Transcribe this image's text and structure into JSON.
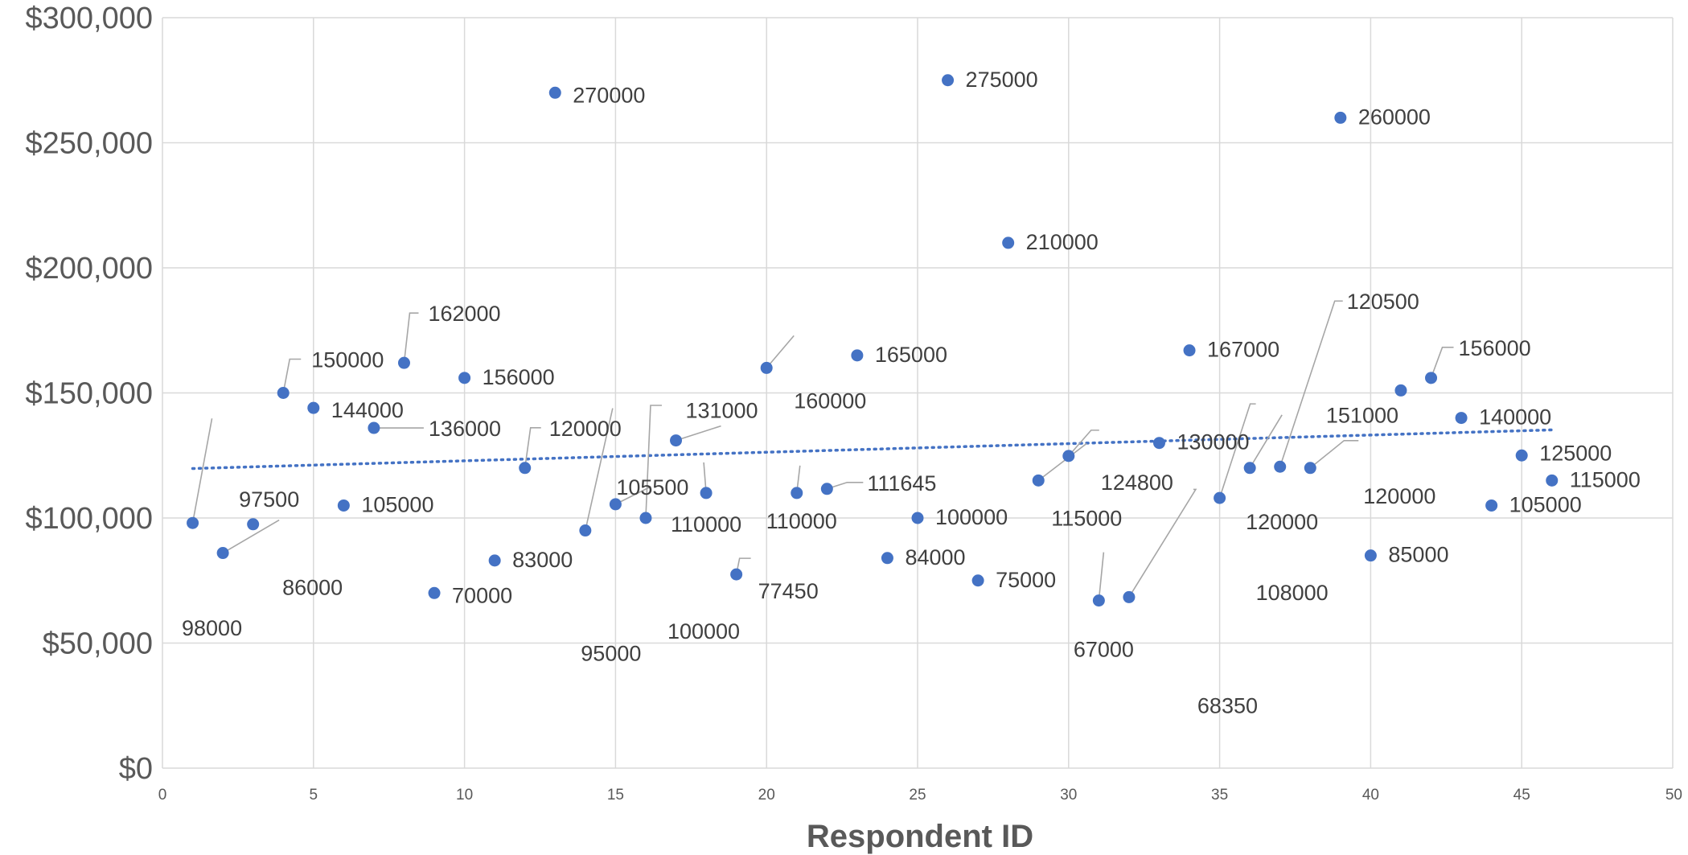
{
  "chart_data": {
    "type": "scatter",
    "title": "",
    "xlabel": "Respondent ID",
    "ylabel": "",
    "xlim": [
      0,
      50
    ],
    "ylim": [
      0,
      300000
    ],
    "x_ticks": [
      "0",
      "5",
      "10",
      "15",
      "20",
      "25",
      "30",
      "35",
      "40",
      "45",
      "50"
    ],
    "y_ticks": [
      "$0",
      "$50,000",
      "$100,000",
      "$150,000",
      "$200,000",
      "$250,000",
      "$300,000"
    ],
    "grid": true,
    "legend": "none",
    "point_color": "#4472c4",
    "trendline": {
      "type": "linear",
      "style": "dotted",
      "color": "#4472c4"
    },
    "points": [
      {
        "x": 1,
        "y": 98000,
        "label": "98000"
      },
      {
        "x": 2,
        "y": 86000,
        "label": "86000"
      },
      {
        "x": 3,
        "y": 97500,
        "label": "97500"
      },
      {
        "x": 4,
        "y": 150000,
        "label": "150000"
      },
      {
        "x": 5,
        "y": 144000,
        "label": "144000"
      },
      {
        "x": 6,
        "y": 105000,
        "label": "105000"
      },
      {
        "x": 7,
        "y": 136000,
        "label": "136000"
      },
      {
        "x": 8,
        "y": 162000,
        "label": "162000"
      },
      {
        "x": 9,
        "y": 70000,
        "label": "70000"
      },
      {
        "x": 10,
        "y": 156000,
        "label": "156000"
      },
      {
        "x": 11,
        "y": 83000,
        "label": "83000"
      },
      {
        "x": 12,
        "y": 120000,
        "label": "120000"
      },
      {
        "x": 13,
        "y": 270000,
        "label": "270000"
      },
      {
        "x": 14,
        "y": 95000,
        "label": "95000"
      },
      {
        "x": 15,
        "y": 105500,
        "label": "105500"
      },
      {
        "x": 16,
        "y": 100000,
        "label": "100000"
      },
      {
        "x": 17,
        "y": 131000,
        "label": "131000"
      },
      {
        "x": 18,
        "y": 110000,
        "label": "110000"
      },
      {
        "x": 19,
        "y": 77450,
        "label": "77450"
      },
      {
        "x": 20,
        "y": 160000,
        "label": "160000"
      },
      {
        "x": 21,
        "y": 110000,
        "label": "110000"
      },
      {
        "x": 22,
        "y": 111645,
        "label": "111645"
      },
      {
        "x": 23,
        "y": 165000,
        "label": "165000"
      },
      {
        "x": 24,
        "y": 84000,
        "label": "84000"
      },
      {
        "x": 25,
        "y": 100000,
        "label": "100000"
      },
      {
        "x": 26,
        "y": 275000,
        "label": "275000"
      },
      {
        "x": 27,
        "y": 75000,
        "label": "75000"
      },
      {
        "x": 28,
        "y": 210000,
        "label": "210000"
      },
      {
        "x": 29,
        "y": 115000,
        "label": "115000"
      },
      {
        "x": 30,
        "y": 124800,
        "label": "124800"
      },
      {
        "x": 31,
        "y": 67000,
        "label": "67000"
      },
      {
        "x": 32,
        "y": 68350,
        "label": "68350"
      },
      {
        "x": 33,
        "y": 130000,
        "label": "130000"
      },
      {
        "x": 34,
        "y": 167000,
        "label": "167000"
      },
      {
        "x": 35,
        "y": 108000,
        "label": "108000"
      },
      {
        "x": 36,
        "y": 120000,
        "label": "120000"
      },
      {
        "x": 37,
        "y": 120500,
        "label": "120500"
      },
      {
        "x": 38,
        "y": 120000,
        "label": "120000"
      },
      {
        "x": 39,
        "y": 260000,
        "label": "260000"
      },
      {
        "x": 40,
        "y": 85000,
        "label": "85000"
      },
      {
        "x": 41,
        "y": 151000,
        "label": "151000"
      },
      {
        "x": 42,
        "y": 156000,
        "label": "156000"
      },
      {
        "x": 43,
        "y": 140000,
        "label": "140000"
      },
      {
        "x": 44,
        "y": 105000,
        "label": "105000"
      },
      {
        "x": 45,
        "y": 125000,
        "label": "125000"
      },
      {
        "x": 46,
        "y": 115000,
        "label": "115000"
      }
    ]
  }
}
